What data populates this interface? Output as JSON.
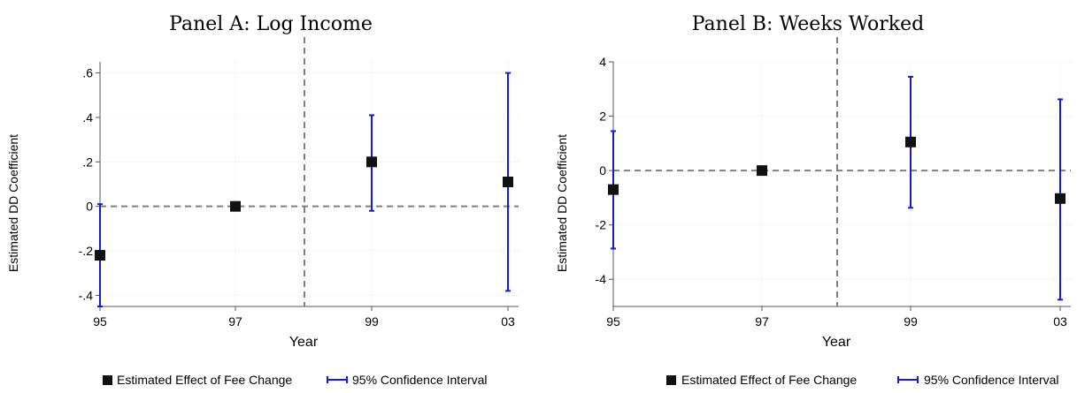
{
  "colors": {
    "marker": "#111111",
    "ci": "#1a1ad6",
    "grid": "#dcdcdc",
    "refline": "#7f7f7f",
    "axis": "#555555"
  },
  "chart_data": [
    {
      "type": "scatter",
      "title": "Panel A: Log Income",
      "xlabel": "Year",
      "ylabel": "Estimated DD Coefficient",
      "x_categories": [
        "95",
        "97",
        "99",
        "03"
      ],
      "ylim": [
        -0.45,
        0.65
      ],
      "y_ticks": [
        -0.4,
        -0.2,
        0,
        0.2,
        0.4,
        0.6
      ],
      "y_tick_labels": [
        "-.4",
        "-.2",
        "0",
        ".2",
        ".4",
        ".6"
      ],
      "event_line_after": "97",
      "zero_reference_line": true,
      "grid": true,
      "legend_position": "bottom",
      "series": [
        {
          "name": "Estimated Effect of Fee Change",
          "values": [
            -0.22,
            0.0,
            0.2,
            0.11
          ]
        },
        {
          "name": "95% Confidence Interval",
          "low": [
            -0.45,
            0.0,
            -0.02,
            -0.38
          ],
          "high": [
            0.01,
            0.0,
            0.41,
            0.6
          ]
        }
      ]
    },
    {
      "type": "scatter",
      "title": "Panel B: Weeks Worked",
      "xlabel": "Year",
      "ylabel": "Estimated DD Coefficient",
      "x_categories": [
        "95",
        "97",
        "99",
        "03"
      ],
      "ylim": [
        -5,
        4
      ],
      "y_ticks": [
        -4,
        -2,
        0,
        2,
        4
      ],
      "y_tick_labels": [
        "-4",
        "-2",
        "0",
        "2",
        "4"
      ],
      "event_line_after": "97",
      "zero_reference_line": true,
      "grid": true,
      "legend_position": "bottom",
      "series": [
        {
          "name": "Estimated Effect of Fee Change",
          "values": [
            -0.7,
            0.0,
            1.05,
            -1.03
          ]
        },
        {
          "name": "95% Confidence Interval",
          "low": [
            -2.87,
            0.0,
            -1.37,
            -4.75
          ],
          "high": [
            1.45,
            0.0,
            3.45,
            2.62
          ]
        }
      ]
    }
  ]
}
